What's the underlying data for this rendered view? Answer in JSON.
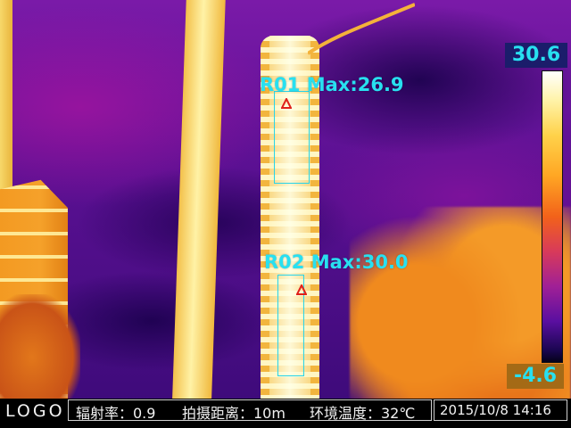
{
  "roi": [
    {
      "label": "R01 Max:26.9"
    },
    {
      "label": "R02 Max:30.0"
    }
  ],
  "scale": {
    "max": "30.6",
    "min": "-4.6",
    "palette": "ironbow"
  },
  "status_bar": {
    "logo": "LOGO",
    "emissivity": "辐射率：0.9",
    "distance": "拍摄距离：10m",
    "ambient_temperature": "环境温度：32℃",
    "datetime": "2015/10/8 14:16"
  },
  "colors": {
    "annotation": "#28e0f0",
    "max_marker": "#e0201a"
  },
  "icons": {
    "max_marker": "warning-triangle-icon"
  }
}
